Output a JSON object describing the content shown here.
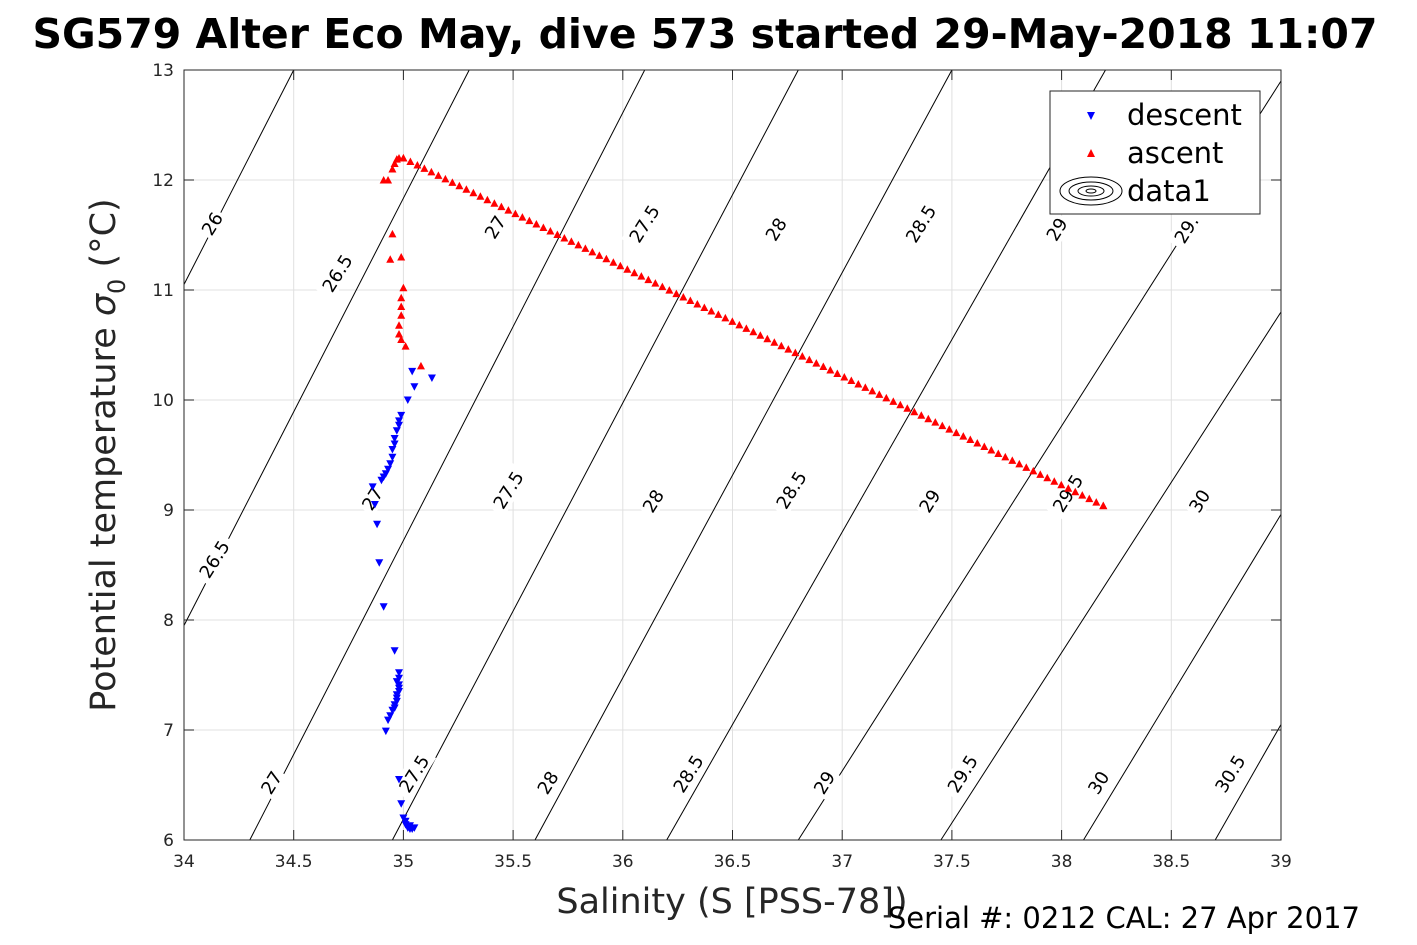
{
  "chart_data": {
    "type": "scatter",
    "title": "SG579 Alter Eco May, dive 573 started 29-May-2018 11:07",
    "xlabel": "Salinity (S [PSS-78])",
    "ylabel": "Potential temperature σ_0 (°C)",
    "ylabel_main": "Potential temperature",
    "ylabel_symbol": "σ",
    "ylabel_sub": "0",
    "ylabel_unit": " (°C)",
    "footer": "Serial #: 0212  CAL: 27 Apr 2017",
    "xlim": [
      34,
      39
    ],
    "ylim": [
      6,
      13
    ],
    "xticks": [
      34,
      34.5,
      35,
      35.5,
      36,
      36.5,
      37,
      37.5,
      38,
      38.5,
      39
    ],
    "xtick_labels": [
      "34",
      "34.5",
      "35",
      "35.5",
      "36",
      "36.5",
      "37",
      "37.5",
      "38",
      "38.5",
      "39"
    ],
    "yticks": [
      6,
      7,
      8,
      9,
      10,
      11,
      12,
      13
    ],
    "ytick_labels": [
      "6",
      "7",
      "8",
      "9",
      "10",
      "11",
      "12",
      "13"
    ],
    "grid": true,
    "legend_position": "top-right",
    "legend": [
      "descent",
      "ascent",
      "data1"
    ],
    "colors": {
      "descent": "#0000ff",
      "ascent": "#ff0000",
      "contour": "#000000",
      "grid": "#e0e0e0",
      "axis": "#262626"
    },
    "contour_levels": [
      26,
      26.5,
      27,
      27.5,
      28,
      28.5,
      29,
      29.5,
      30,
      30.5
    ],
    "contours": [
      {
        "level": "26",
        "points": [
          [
            34,
            11.05
          ],
          [
            34.5,
            13.0
          ]
        ]
      },
      {
        "level": "26.5",
        "points": [
          [
            34,
            7.95
          ],
          [
            35.3,
            13.0
          ]
        ]
      },
      {
        "level": "27",
        "points": [
          [
            34.3,
            6.0
          ],
          [
            36.1,
            13.0
          ]
        ]
      },
      {
        "level": "27.5",
        "points": [
          [
            34.95,
            6.0
          ],
          [
            36.8,
            13.0
          ]
        ]
      },
      {
        "level": "28",
        "points": [
          [
            35.6,
            6.0
          ],
          [
            37.5,
            13.0
          ]
        ]
      },
      {
        "level": "28.5",
        "points": [
          [
            36.2,
            6.0
          ],
          [
            38.2,
            13.0
          ]
        ]
      },
      {
        "level": "29",
        "points": [
          [
            36.8,
            6.0
          ],
          [
            39.0,
            12.9
          ]
        ]
      },
      {
        "level": "29.5",
        "points": [
          [
            37.45,
            6.0
          ],
          [
            39.0,
            10.8
          ]
        ]
      },
      {
        "level": "30",
        "points": [
          [
            38.1,
            6.0
          ],
          [
            39.0,
            8.96
          ]
        ]
      },
      {
        "level": "30.5",
        "points": [
          [
            38.7,
            6.0
          ],
          [
            39.0,
            7.05
          ]
        ]
      }
    ],
    "contour_labels": [
      {
        "text": "26",
        "x": 34.13,
        "y": 11.6,
        "angle": -58
      },
      {
        "text": "26.5",
        "x": 34.7,
        "y": 11.15,
        "angle": -58
      },
      {
        "text": "27",
        "x": 35.42,
        "y": 11.57,
        "angle": -58
      },
      {
        "text": "27.5",
        "x": 36.1,
        "y": 11.6,
        "angle": -58
      },
      {
        "text": "28",
        "x": 36.7,
        "y": 11.55,
        "angle": -58
      },
      {
        "text": "28.5",
        "x": 37.36,
        "y": 11.6,
        "angle": -58
      },
      {
        "text": "29",
        "x": 37.98,
        "y": 11.55,
        "angle": -58
      },
      {
        "text": "29.",
        "x": 38.57,
        "y": 11.55,
        "angle": -58
      },
      {
        "text": "26.5",
        "x": 34.14,
        "y": 8.55,
        "angle": -58
      },
      {
        "text": "27",
        "x": 34.86,
        "y": 9.1,
        "angle": -58
      },
      {
        "text": "27.5",
        "x": 35.48,
        "y": 9.18,
        "angle": -58
      },
      {
        "text": "28",
        "x": 36.14,
        "y": 9.08,
        "angle": -58
      },
      {
        "text": "28.5",
        "x": 36.77,
        "y": 9.18,
        "angle": -58
      },
      {
        "text": "29",
        "x": 37.4,
        "y": 9.08,
        "angle": -58
      },
      {
        "text": "29.5",
        "x": 38.03,
        "y": 9.15,
        "angle": -58
      },
      {
        "text": "30",
        "x": 38.63,
        "y": 9.08,
        "angle": -58
      },
      {
        "text": "27",
        "x": 34.4,
        "y": 6.52,
        "angle": -58
      },
      {
        "text": "27.5",
        "x": 35.05,
        "y": 6.6,
        "angle": -58
      },
      {
        "text": "28",
        "x": 35.66,
        "y": 6.52,
        "angle": -58
      },
      {
        "text": "28.5",
        "x": 36.3,
        "y": 6.6,
        "angle": -58
      },
      {
        "text": "29",
        "x": 36.92,
        "y": 6.52,
        "angle": -58
      },
      {
        "text": "29.5",
        "x": 37.55,
        "y": 6.6,
        "angle": -58
      },
      {
        "text": "30",
        "x": 38.17,
        "y": 6.52,
        "angle": -58
      },
      {
        "text": "30.5",
        "x": 38.77,
        "y": 6.6,
        "angle": -58
      }
    ],
    "series": [
      {
        "name": "descent",
        "marker": "triangle-down",
        "points": [
          [
            35.04,
            6.1
          ],
          [
            35.03,
            6.1
          ],
          [
            35.02,
            6.11
          ],
          [
            35.05,
            6.11
          ],
          [
            35.01,
            6.14
          ],
          [
            35.03,
            6.13
          ],
          [
            35.0,
            6.2
          ],
          [
            35.01,
            6.17
          ],
          [
            34.99,
            6.33
          ],
          [
            34.98,
            6.55
          ],
          [
            34.92,
            6.99
          ],
          [
            34.93,
            7.09
          ],
          [
            34.94,
            7.13
          ],
          [
            34.95,
            7.18
          ],
          [
            34.96,
            7.2
          ],
          [
            34.96,
            7.23
          ],
          [
            34.97,
            7.26
          ],
          [
            34.97,
            7.29
          ],
          [
            34.97,
            7.32
          ],
          [
            34.98,
            7.35
          ],
          [
            34.98,
            7.38
          ],
          [
            34.98,
            7.41
          ],
          [
            34.97,
            7.44
          ],
          [
            34.98,
            7.47
          ],
          [
            34.98,
            7.52
          ],
          [
            34.96,
            7.72
          ],
          [
            34.91,
            8.12
          ],
          [
            34.89,
            8.52
          ],
          [
            34.88,
            8.87
          ],
          [
            34.87,
            9.05
          ],
          [
            34.86,
            9.21
          ],
          [
            34.9,
            9.27
          ],
          [
            34.91,
            9.3
          ],
          [
            34.92,
            9.33
          ],
          [
            34.93,
            9.37
          ],
          [
            34.94,
            9.42
          ],
          [
            34.95,
            9.48
          ],
          [
            34.95,
            9.55
          ],
          [
            34.96,
            9.6
          ],
          [
            34.96,
            9.65
          ],
          [
            34.97,
            9.72
          ],
          [
            34.98,
            9.77
          ],
          [
            34.98,
            9.81
          ],
          [
            34.99,
            9.86
          ],
          [
            35.02,
            10.0
          ],
          [
            35.05,
            10.12
          ],
          [
            35.04,
            10.26
          ],
          [
            35.13,
            10.2
          ]
        ]
      },
      {
        "name": "ascent",
        "marker": "triangle-up",
        "points": [
          [
            38.19,
            9.04
          ],
          [
            35.08,
            10.31
          ],
          [
            35.01,
            10.49
          ],
          [
            34.99,
            10.55
          ],
          [
            34.98,
            10.6
          ],
          [
            34.98,
            10.68
          ],
          [
            34.99,
            10.77
          ],
          [
            34.99,
            10.85
          ],
          [
            34.99,
            10.93
          ],
          [
            35.0,
            11.02
          ],
          [
            34.99,
            11.3
          ],
          [
            34.95,
            11.51
          ],
          [
            34.94,
            11.28
          ],
          [
            34.91,
            12.0
          ],
          [
            34.93,
            12.0
          ],
          [
            34.95,
            12.1
          ],
          [
            34.96,
            12.15
          ],
          [
            34.97,
            12.19
          ],
          [
            34.98,
            12.2
          ],
          [
            35.0,
            12.2
          ]
        ]
      }
    ],
    "ascent_line": {
      "start": [
        35.0,
        12.2
      ],
      "end": [
        38.19,
        9.04
      ],
      "count": 100
    }
  }
}
